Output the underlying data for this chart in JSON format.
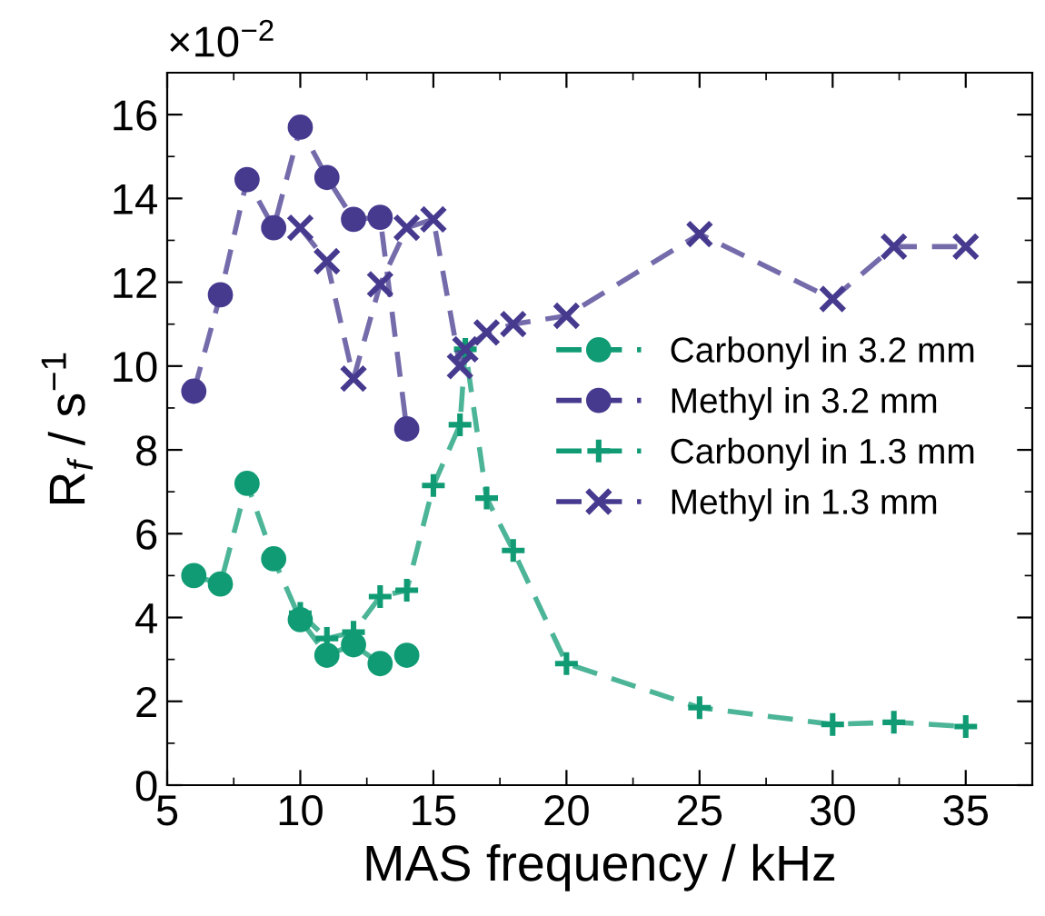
{
  "chart_data": {
    "type": "line",
    "xlabel": "MAS frequency / kHz",
    "ylabel": "R$_{f}$ / s$^{−1}$",
    "annotations": [
      "×10$^{−2}$"
    ],
    "xlim": [
      5,
      37.5
    ],
    "xticks": [
      5,
      10,
      15,
      20,
      25,
      30,
      35
    ],
    "ylim": [
      0,
      17
    ],
    "yticks": [
      0,
      2,
      4,
      6,
      8,
      10,
      12,
      14,
      16
    ],
    "grid": false,
    "legend": "center right",
    "line_style": "dashed",
    "series": [
      {
        "name": "Carbonyl in 3.2 mm",
        "color": "#109b74",
        "marker": "circle",
        "x": [
          6,
          7,
          8,
          9,
          10,
          11,
          12,
          13,
          14
        ],
        "values": [
          5.0,
          4.8,
          7.2,
          5.4,
          3.95,
          3.1,
          3.35,
          2.9,
          3.1
        ]
      },
      {
        "name": "Methyl in 3.2 mm",
        "color": "#463a8f",
        "marker": "circle",
        "x": [
          6,
          7,
          8,
          9,
          10,
          11,
          12,
          13,
          14
        ],
        "values": [
          9.4,
          11.7,
          14.45,
          13.3,
          15.7,
          14.5,
          13.5,
          13.55,
          8.5
        ]
      },
      {
        "name": "Carbonyl in 1.3 mm",
        "color": "#109b74",
        "marker": "plus",
        "x": [
          10,
          11,
          12,
          13,
          14,
          15,
          16,
          16.2,
          17,
          18,
          20,
          25,
          30,
          32.3,
          35
        ],
        "values": [
          4.1,
          3.5,
          3.65,
          4.5,
          4.65,
          7.15,
          8.6,
          10.4,
          6.85,
          5.6,
          2.9,
          1.85,
          1.45,
          1.5,
          1.4
        ]
      },
      {
        "name": "Methyl in 1.3 mm",
        "color": "#463a8f",
        "marker": "cross",
        "x": [
          10,
          11,
          12,
          13,
          14,
          15,
          16,
          16.2,
          17,
          18,
          20,
          25,
          30,
          32.3,
          35
        ],
        "values": [
          13.3,
          12.5,
          9.7,
          11.95,
          13.3,
          13.5,
          10.0,
          10.4,
          10.8,
          11.0,
          11.2,
          13.15,
          11.6,
          12.85,
          12.85
        ]
      }
    ]
  }
}
